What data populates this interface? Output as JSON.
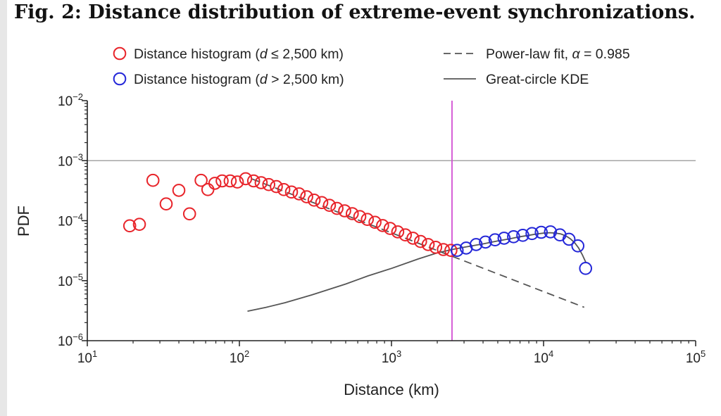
{
  "figure": {
    "title": "Fig. 2: Distance distribution of extreme-event synchronizations."
  },
  "chart_data": {
    "type": "scatter",
    "xlabel": "Distance (km)",
    "ylabel": "PDF",
    "x_scale": "log",
    "y_scale": "log",
    "xlim": [
      10,
      100000
    ],
    "ylim": [
      1e-06,
      0.01
    ],
    "x_ticks": [
      {
        "value": 10,
        "base": "10",
        "exp": "1"
      },
      {
        "value": 100,
        "base": "10",
        "exp": "2"
      },
      {
        "value": 1000,
        "base": "10",
        "exp": "3"
      },
      {
        "value": 10000,
        "base": "10",
        "exp": "4"
      },
      {
        "value": 100000,
        "base": "10",
        "exp": "5"
      }
    ],
    "y_ticks": [
      {
        "value": 1e-06,
        "base": "10",
        "exp": "−6"
      },
      {
        "value": 1e-05,
        "base": "10",
        "exp": "−5"
      },
      {
        "value": 0.0001,
        "base": "10",
        "exp": "−4"
      },
      {
        "value": 0.001,
        "base": "10",
        "exp": "−3"
      },
      {
        "value": 0.01,
        "base": "10",
        "exp": "−2"
      }
    ],
    "reference_lines": {
      "horizontal_y": 0.001,
      "vertical_x": 2500
    },
    "colors": {
      "short_series": "#e8242a",
      "long_series": "#2427d8",
      "vertical_line": "#d24fd3",
      "horizontal_line": "#a6a6a6",
      "fit_line": "#555555",
      "kde_line": "#555555",
      "axis": "#222222"
    },
    "legend": {
      "placement": "top",
      "entries": [
        {
          "pre": "Distance histogram (",
          "var": "d",
          "post": " ≤ 2,500 km)"
        },
        {
          "pre": "Distance histogram (",
          "var": "d",
          "post": " > 2,500 km)"
        },
        {
          "pre": "Power-law fit, ",
          "var": "α",
          "post": " = 0.985"
        },
        {
          "pre": "Great-circle KDE",
          "var": "",
          "post": ""
        }
      ]
    },
    "series": [
      {
        "name": "Distance histogram (d ≤ 2,500 km)",
        "points": [
          [
            19,
            8.2e-05
          ],
          [
            22,
            8.7e-05
          ],
          [
            27,
            0.00047
          ],
          [
            33,
            0.00019
          ],
          [
            40,
            0.00032
          ],
          [
            47,
            0.00013
          ],
          [
            56,
            0.00047
          ],
          [
            62,
            0.00033
          ],
          [
            69,
            0.00042
          ],
          [
            77,
            0.00046
          ],
          [
            87,
            0.00046
          ],
          [
            97,
            0.00044
          ],
          [
            110,
            0.0005
          ],
          [
            124,
            0.00046
          ],
          [
            139,
            0.00043
          ],
          [
            156,
            0.0004
          ],
          [
            175,
            0.00037
          ],
          [
            196,
            0.00033
          ],
          [
            220,
            0.0003
          ],
          [
            247,
            0.00028
          ],
          [
            277,
            0.00025
          ],
          [
            310,
            0.00022
          ],
          [
            348,
            0.0002
          ],
          [
            391,
            0.00018
          ],
          [
            438,
            0.00016
          ],
          [
            492,
            0.000146
          ],
          [
            552,
            0.000131
          ],
          [
            619,
            0.000117
          ],
          [
            694,
            0.000105
          ],
          [
            779,
            9.4e-05
          ],
          [
            874,
            8.3e-05
          ],
          [
            980,
            7.4e-05
          ],
          [
            1100,
            6.5e-05
          ],
          [
            1234,
            5.8e-05
          ],
          [
            1384,
            5.1e-05
          ],
          [
            1553,
            4.5e-05
          ],
          [
            1742,
            4e-05
          ],
          [
            1954,
            3.6e-05
          ],
          [
            2193,
            3.3e-05
          ],
          [
            2460,
            3.2e-05
          ]
        ]
      },
      {
        "name": "Distance histogram (d > 2,500 km)",
        "points": [
          [
            2700,
            3.2e-05
          ],
          [
            3100,
            3.5e-05
          ],
          [
            3600,
            4e-05
          ],
          [
            4150,
            4.4e-05
          ],
          [
            4800,
            4.8e-05
          ],
          [
            5500,
            5.1e-05
          ],
          [
            6350,
            5.4e-05
          ],
          [
            7300,
            5.7e-05
          ],
          [
            8400,
            6.1e-05
          ],
          [
            9650,
            6.4e-05
          ],
          [
            11100,
            6.5e-05
          ],
          [
            12800,
            5.8e-05
          ],
          [
            14700,
            4.9e-05
          ],
          [
            16800,
            3.8e-05
          ],
          [
            18900,
            1.6e-05
          ]
        ]
      },
      {
        "name": "Power-law fit, α = 0.985",
        "points": [
          [
            120,
            0.0005
          ],
          [
            18500,
            3.6e-06
          ]
        ]
      },
      {
        "name": "Great-circle KDE",
        "points": [
          [
            113,
            3.1e-06
          ],
          [
            150,
            3.6e-06
          ],
          [
            200,
            4.3e-06
          ],
          [
            300,
            5.8e-06
          ],
          [
            500,
            8.8e-06
          ],
          [
            700,
            1.2e-05
          ],
          [
            1000,
            1.6e-05
          ],
          [
            1500,
            2.3e-05
          ],
          [
            2000,
            2.9e-05
          ],
          [
            2500,
            3.3e-05
          ],
          [
            3000,
            3.6e-05
          ],
          [
            4000,
            4.1e-05
          ],
          [
            5000,
            4.6e-05
          ],
          [
            6000,
            5e-05
          ],
          [
            7000,
            5.4e-05
          ],
          [
            8000,
            5.7e-05
          ],
          [
            9000,
            6e-05
          ],
          [
            10000,
            6.2e-05
          ],
          [
            11000,
            6.3e-05
          ],
          [
            12000,
            6.2e-05
          ],
          [
            13000,
            6e-05
          ],
          [
            14000,
            5.6e-05
          ],
          [
            15000,
            5e-05
          ],
          [
            16000,
            4.3e-05
          ],
          [
            17000,
            3.5e-05
          ],
          [
            18000,
            2.7e-05
          ],
          [
            19000,
            2e-05
          ]
        ]
      }
    ]
  }
}
